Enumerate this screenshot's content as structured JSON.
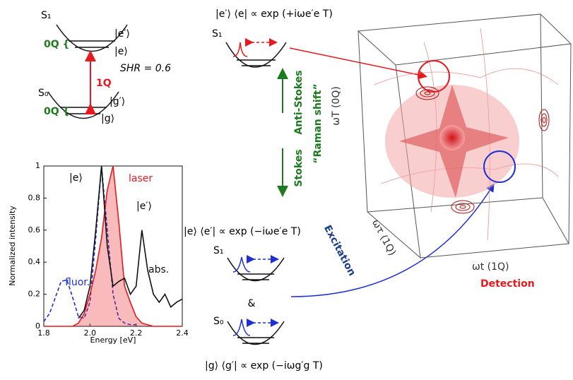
{
  "diagram": {
    "levels": {
      "s1": "S₁",
      "s0": "S₀",
      "e_prime": "|e′⟩",
      "e": "|e⟩",
      "g_prime": "|g′⟩",
      "g": "|g⟩",
      "zero_q_top": "0Q {",
      "zero_q_bottom": "0Q {",
      "one_q": "1Q",
      "huang_rhys": "SHR = 0.6"
    },
    "pathway_top": {
      "formula": "|e′⟩ ⟨e| ∝ exp (+iωe′e T)",
      "s1": "S₁"
    },
    "raman": {
      "anti_stokes": "Anti-Stokes",
      "stokes": "Stokes",
      "raman_shift": "“Raman shift”",
      "axis": "ωT (0Q)"
    },
    "pathway_bottom": {
      "formula_e": "|e⟩ ⟨e′| ∝ exp (−iωe′e T)",
      "s1": "S₁",
      "and": "&",
      "s0": "S₀",
      "formula_g": "|g⟩ ⟨g′| ∝ exp (−iωg′g T)"
    },
    "cube": {
      "excitation_axis": "ωτ (1Q)",
      "excitation": "Excitation",
      "detection_axis": "ωt (1Q)",
      "detection": "Detection"
    }
  },
  "chart_data": {
    "type": "line",
    "xlabel": "Energy [eV]",
    "ylabel": "Normalized intensity",
    "xlim": [
      1.8,
      2.4
    ],
    "ylim": [
      0,
      1
    ],
    "xticks": [
      1.8,
      {
        "value": 2,
        "label": "2.0"
      },
      2.2,
      2.4
    ],
    "yticks": [
      0,
      0.2,
      0.4,
      0.6,
      0.8,
      1
    ],
    "annotations": [
      "|e⟩",
      "|e′⟩"
    ],
    "x": [
      1.8,
      1.825,
      1.85,
      1.875,
      1.9,
      1.925,
      1.95,
      1.975,
      2.0,
      2.025,
      2.05,
      2.075,
      2.1,
      2.125,
      2.15,
      2.175,
      2.2,
      2.225,
      2.25,
      2.275,
      2.3,
      2.325,
      2.35,
      2.375,
      2.4
    ],
    "series": [
      {
        "name": "fluor.",
        "color": "#1f2fd6",
        "dashed": true,
        "values": [
          0.03,
          0.08,
          0.18,
          0.28,
          0.29,
          0.18,
          0.06,
          0.05,
          0.15,
          0.55,
          1.0,
          0.6,
          0.2,
          0.05,
          0.02,
          0.01,
          0.01,
          null,
          null,
          null,
          null,
          null,
          null,
          null,
          null
        ]
      },
      {
        "name": "laser",
        "color": "#e8191e",
        "filled": true,
        "values": [
          0,
          0,
          0,
          0,
          0,
          0,
          0.02,
          0.08,
          0.2,
          0.35,
          0.55,
          0.85,
          1.0,
          0.65,
          0.25,
          0.15,
          0.06,
          0.02,
          0.01,
          0,
          0,
          0,
          0,
          0,
          0
        ]
      },
      {
        "name": "abs.",
        "color": "#111111",
        "values": [
          null,
          null,
          null,
          null,
          null,
          null,
          0.05,
          0.1,
          0.25,
          0.6,
          1.0,
          0.5,
          0.25,
          0.28,
          0.3,
          0.2,
          0.25,
          0.6,
          0.35,
          0.2,
          0.15,
          0.2,
          0.12,
          0.15,
          0.17
        ]
      }
    ]
  }
}
